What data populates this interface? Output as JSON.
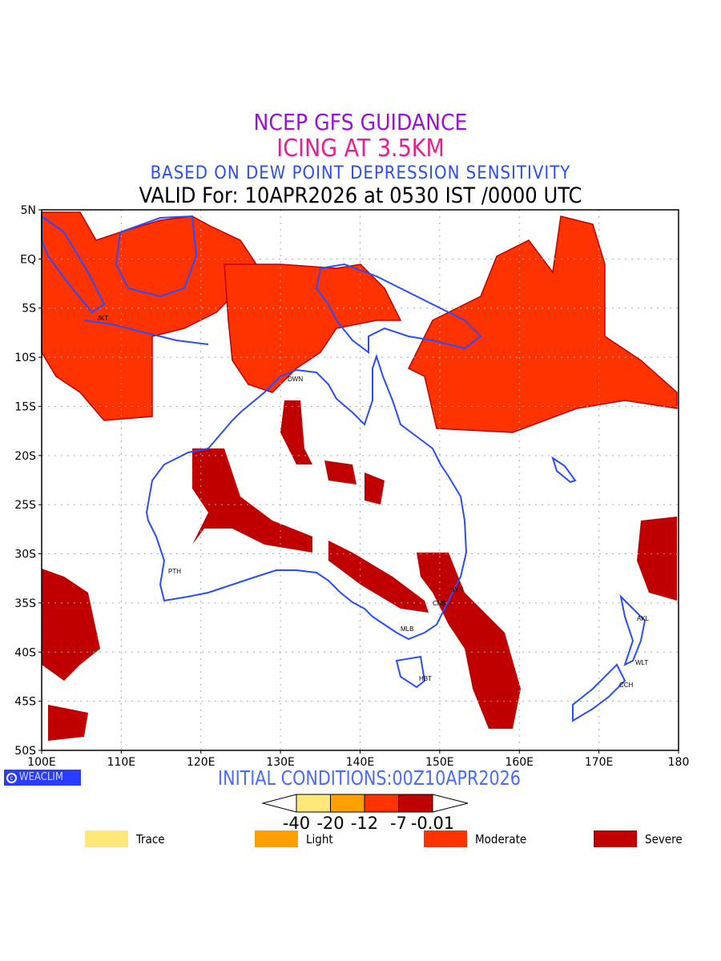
{
  "title": {
    "line1": "NCEP GFS GUIDANCE",
    "line2": "ICING AT 3.5KM",
    "line3": "BASED ON DEW POINT DEPRESSION SENSITIVITY",
    "line4": "VALID For: 10APR2026 at 0530 IST /0000 UTC"
  },
  "axes": {
    "lat_labels": [
      "5N",
      "EQ",
      "5S",
      "10S",
      "15S",
      "20S",
      "25S",
      "30S",
      "35S",
      "40S",
      "45S",
      "50S"
    ],
    "lon_labels": [
      "100E",
      "110E",
      "120E",
      "130E",
      "140E",
      "150E",
      "160E",
      "170E",
      "180"
    ]
  },
  "cities": [
    "JKT",
    "DWN",
    "PTH",
    "SYN",
    "CNB",
    "MLB",
    "HBT",
    "AKL",
    "WLT",
    "CCH"
  ],
  "footer": {
    "logo": "WEACLIM",
    "initial_conditions": "INITIAL CONDITIONS:00Z10APR2026"
  },
  "colorbar": {
    "levels": [
      "-40",
      "-20",
      "-12",
      "-7",
      "-0.01"
    ],
    "colors": [
      "#ffe77a",
      "#ff9f00",
      "#ff3300",
      "#c00000"
    ]
  },
  "legend": [
    {
      "label": "Trace",
      "color": "#ffe77a"
    },
    {
      "label": "Light",
      "color": "#ff9f00"
    },
    {
      "label": "Moderate",
      "color": "#ff3300"
    },
    {
      "label": "Severe",
      "color": "#c00000"
    }
  ]
}
